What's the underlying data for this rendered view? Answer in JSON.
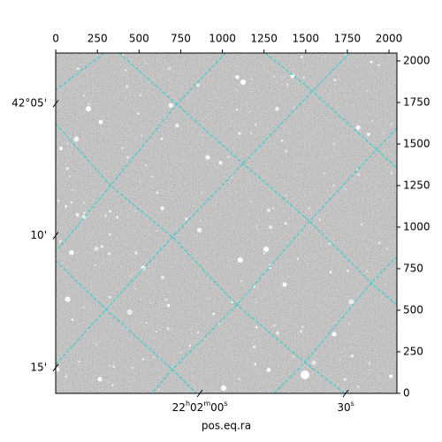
{
  "chart_data": {
    "type": "image",
    "xlabel": "pos.eq.ra",
    "xlim": [
      -0.5,
      2047.5
    ],
    "ylim": [
      -0.5,
      2047.5
    ],
    "xticks": [
      0,
      250,
      500,
      750,
      1000,
      1250,
      1500,
      1750,
      2000
    ],
    "yticks": [
      0,
      250,
      500,
      750,
      1000,
      1250,
      1500,
      1750,
      2000
    ],
    "ra_ticks": [
      {
        "value": 865,
        "label": "22h02m00s"
      },
      {
        "value": 1740,
        "label": "30s"
      }
    ],
    "dec_ticks": [
      {
        "value": 1743,
        "label": "42°05'"
      },
      {
        "value": 949,
        "label": "10'"
      },
      {
        "value": 155,
        "label": "15'"
      }
    ]
  }
}
